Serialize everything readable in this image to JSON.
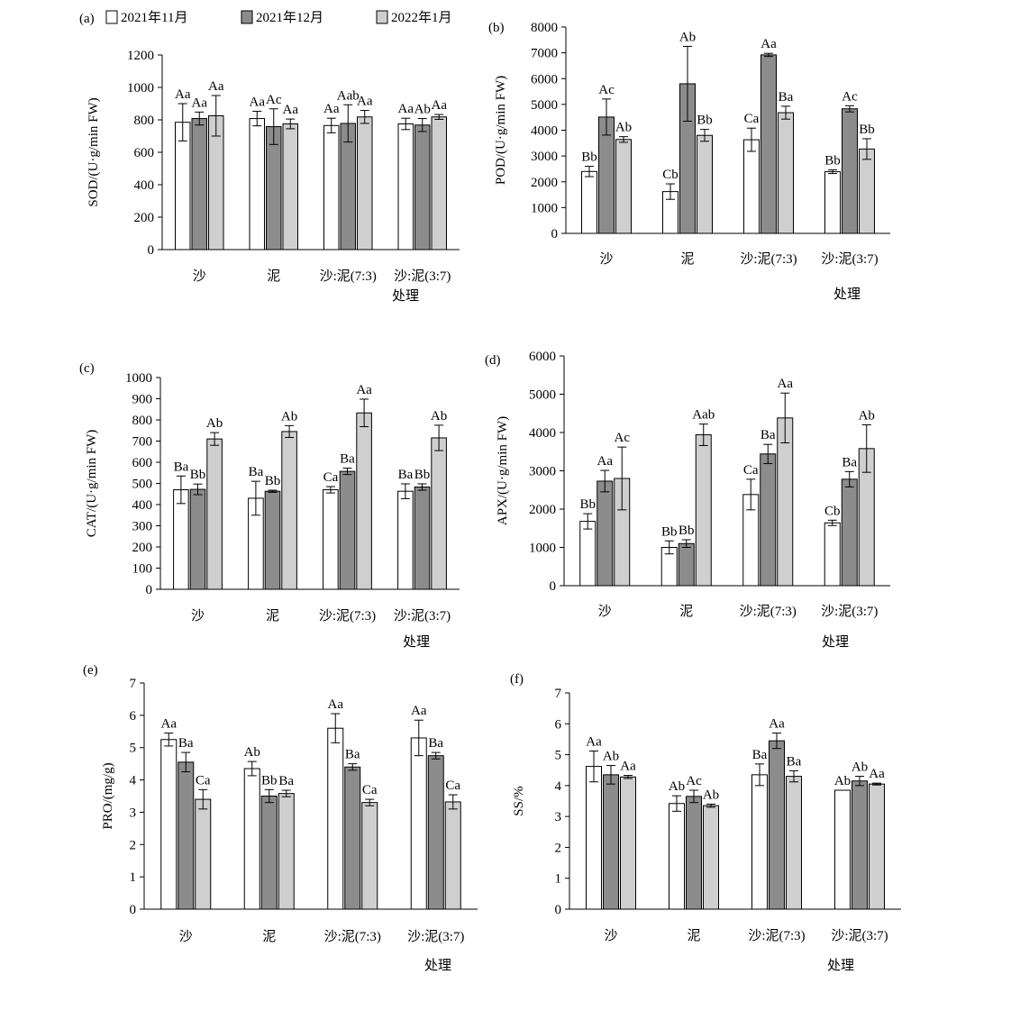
{
  "legend": {
    "items": [
      {
        "label": "2021年11月",
        "color": "#ffffff"
      },
      {
        "label": "2021年12月",
        "color": "#8c8c8c"
      },
      {
        "label": "2022年1月",
        "color": "#cfcfcf"
      }
    ]
  },
  "xlabel": "处理",
  "chart_data": [
    {
      "type": "bar",
      "panel": "(a)",
      "ylabel": "SOD/(U·g/min FW)",
      "categories": [
        "沙",
        "泥",
        "沙:泥(7:3)",
        "沙:泥(3:7)"
      ],
      "ylim": [
        0,
        1200
      ],
      "yticks": [
        0,
        200,
        400,
        600,
        800,
        1000,
        1200
      ],
      "series": [
        {
          "name": "2021年11月",
          "values": [
            785,
            808,
            765,
            775
          ],
          "errors": [
            115,
            45,
            45,
            35
          ],
          "labels": [
            "Aa",
            "Aa",
            "Aa",
            "Aa"
          ]
        },
        {
          "name": "2021年12月",
          "values": [
            808,
            758,
            778,
            768
          ],
          "errors": [
            40,
            110,
            115,
            40
          ],
          "labels": [
            "Aa",
            "Ac",
            "Aab",
            "Ab"
          ]
        },
        {
          "name": "2022年1月",
          "values": [
            825,
            775,
            818,
            818
          ],
          "errors": [
            125,
            30,
            40,
            15
          ],
          "labels": [
            "Aa",
            "Aa",
            "Aa",
            "Aa"
          ]
        }
      ]
    },
    {
      "type": "bar",
      "panel": "(b)",
      "ylabel": "POD/(U·g/min FW)",
      "categories": [
        "沙",
        "泥",
        "沙:泥(7:3)",
        "沙:泥(3:7)"
      ],
      "ylim": [
        0,
        8000
      ],
      "yticks": [
        0,
        1000,
        2000,
        3000,
        4000,
        5000,
        6000,
        7000,
        8000
      ],
      "series": [
        {
          "name": "2021年11月",
          "values": [
            2400,
            1620,
            3630,
            2390
          ],
          "errors": [
            200,
            300,
            450,
            70
          ],
          "labels": [
            "Bb",
            "Cb",
            "Ca",
            "Bb"
          ]
        },
        {
          "name": "2021年12月",
          "values": [
            4510,
            5800,
            6920,
            4830
          ],
          "errors": [
            700,
            1450,
            60,
            120
          ],
          "labels": [
            "Ac",
            "Ab",
            "Aa",
            "Ac"
          ]
        },
        {
          "name": "2022年1月",
          "values": [
            3640,
            3800,
            4680,
            3270
          ],
          "errors": [
            110,
            230,
            250,
            400
          ],
          "labels": [
            "Ab",
            "Bb",
            "Ba",
            "Bb"
          ]
        }
      ]
    },
    {
      "type": "bar",
      "panel": "(c)",
      "ylabel": "CAT/(U·g/min FW)",
      "categories": [
        "沙",
        "泥",
        "沙:泥(7:3)",
        "沙:泥(3:7)"
      ],
      "ylim": [
        0,
        1000
      ],
      "yticks": [
        0,
        100,
        200,
        300,
        400,
        500,
        600,
        700,
        800,
        900,
        1000
      ],
      "series": [
        {
          "name": "2021年11月",
          "values": [
            470,
            430,
            470,
            463
          ],
          "errors": [
            65,
            80,
            15,
            35
          ],
          "labels": [
            "Ba",
            "Ba",
            "Ca",
            "Ba"
          ]
        },
        {
          "name": "2021年12月",
          "values": [
            472,
            463,
            557,
            483
          ],
          "errors": [
            25,
            5,
            15,
            15
          ],
          "labels": [
            "Bb",
            "Bb",
            "Ba",
            "Bb"
          ]
        },
        {
          "name": "2022年1月",
          "values": [
            710,
            745,
            833,
            715
          ],
          "errors": [
            30,
            28,
            65,
            60
          ],
          "labels": [
            "Ab",
            "Ab",
            "Aa",
            "Ab"
          ]
        }
      ]
    },
    {
      "type": "bar",
      "panel": "(d)",
      "ylabel": "APX/(U·g/min FW)",
      "categories": [
        "沙",
        "泥",
        "沙:泥(7:3)",
        "沙:泥(3:7)"
      ],
      "ylim": [
        0,
        6000
      ],
      "yticks": [
        0,
        1000,
        2000,
        3000,
        4000,
        5000,
        6000
      ],
      "series": [
        {
          "name": "2021年11月",
          "values": [
            1680,
            1000,
            2380,
            1640
          ],
          "errors": [
            200,
            170,
            400,
            70
          ],
          "labels": [
            "Bb",
            "Bb",
            "Ca",
            "Cb"
          ]
        },
        {
          "name": "2021年12月",
          "values": [
            2730,
            1100,
            3440,
            2780
          ],
          "errors": [
            280,
            100,
            250,
            200
          ],
          "labels": [
            "Aa",
            "Bb",
            "Ba",
            "Ba"
          ]
        },
        {
          "name": "2022年1月",
          "values": [
            2800,
            3940,
            4380,
            3580
          ],
          "errors": [
            820,
            280,
            650,
            620
          ],
          "labels": [
            "Ac",
            "Aab",
            "Aa",
            "Ab"
          ]
        }
      ]
    },
    {
      "type": "bar",
      "panel": "(e)",
      "ylabel": "PRO/(mg/g)",
      "categories": [
        "沙",
        "泥",
        "沙:泥(7:3)",
        "沙:泥(3:7)"
      ],
      "ylim": [
        0,
        7
      ],
      "yticks": [
        0,
        1,
        2,
        3,
        4,
        5,
        6,
        7
      ],
      "series": [
        {
          "name": "2021年11月",
          "values": [
            5.25,
            4.35,
            5.6,
            5.3
          ],
          "errors": [
            0.2,
            0.22,
            0.45,
            0.55
          ],
          "labels": [
            "Aa",
            "Ab",
            "Aa",
            "Aa"
          ]
        },
        {
          "name": "2021年12月",
          "values": [
            4.55,
            3.5,
            4.4,
            4.75
          ],
          "errors": [
            0.3,
            0.2,
            0.1,
            0.1
          ],
          "labels": [
            "Ba",
            "Bb",
            "Ba",
            "Ba"
          ]
        },
        {
          "name": "2022年1月",
          "values": [
            3.4,
            3.58,
            3.3,
            3.32
          ],
          "errors": [
            0.3,
            0.1,
            0.1,
            0.22
          ],
          "labels": [
            "Ca",
            "Ba",
            "Ca",
            "Ca"
          ]
        }
      ]
    },
    {
      "type": "bar",
      "panel": "(f)",
      "ylabel": "SS/%",
      "categories": [
        "沙",
        "泥",
        "沙:泥(7:3)",
        "沙:泥(3:7)"
      ],
      "ylim": [
        0,
        7
      ],
      "yticks": [
        0,
        1,
        2,
        3,
        4,
        5,
        6,
        7
      ],
      "series": [
        {
          "name": "2021年11月",
          "values": [
            4.62,
            3.42,
            4.35,
            3.85
          ],
          "errors": [
            0.5,
            0.25,
            0.35,
            0.0
          ],
          "labels": [
            "Aa",
            "Ab",
            "Ba",
            "Ab"
          ]
        },
        {
          "name": "2021年12月",
          "values": [
            4.35,
            3.65,
            5.45,
            4.15
          ],
          "errors": [
            0.3,
            0.2,
            0.25,
            0.15
          ],
          "labels": [
            "Ab",
            "Ac",
            "Aa",
            "Ab"
          ]
        },
        {
          "name": "2022年1月",
          "values": [
            4.28,
            3.35,
            4.3,
            4.05
          ],
          "errors": [
            0.05,
            0.05,
            0.18,
            0.03
          ],
          "labels": [
            "Aa",
            "Ab",
            "Ba",
            "Aa"
          ]
        }
      ]
    }
  ]
}
